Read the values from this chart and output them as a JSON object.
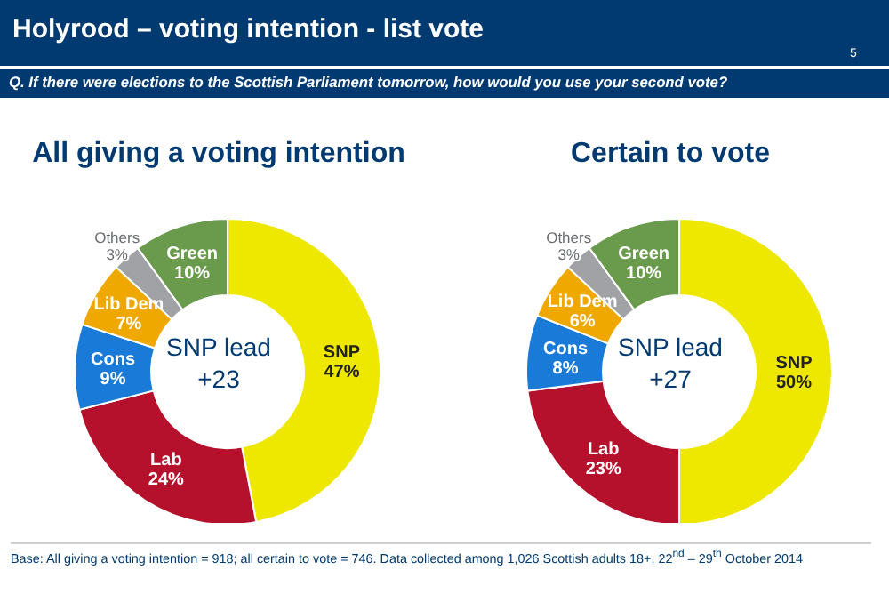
{
  "chart_data": [
    {
      "type": "other",
      "title": "Holyrood – voting intention - list vote",
      "subtitle": "Q. If there were elections to the Scottish Parliament tomorrow, how would you use your second vote?",
      "annotations": [
        "5",
        "Base: All giving a voting intention = 918; all certain to vote = 746. Data collected among 1,026 Scottish adults 18+, 22$^{nd}$ – 29$^{th}$ October 2014"
      ]
    },
    {
      "type": "donut",
      "title": "All giving a voting intention",
      "categories": [
        "SNP",
        "Lab",
        "Cons",
        "Lib Dem",
        "Others",
        "Green"
      ],
      "values": [
        47,
        24,
        9,
        7,
        3,
        10
      ],
      "colors": [
        "#eee800",
        "#b5102c",
        "#1a7ad8",
        "#eea800",
        "#a0a2a6",
        "#6a9a4c"
      ],
      "value_labels": [
        "47%",
        "24%",
        "9%",
        "7%",
        "3%",
        "10%"
      ],
      "annotations": [
        "SNP lead",
        "+23"
      ]
    },
    {
      "type": "donut",
      "title": "Certain to vote",
      "categories": [
        "SNP",
        "Lab",
        "Cons",
        "Lib Dem",
        "Others",
        "Green"
      ],
      "values": [
        50,
        23,
        8,
        6,
        3,
        10
      ],
      "colors": [
        "#eee800",
        "#b5102c",
        "#1a7ad8",
        "#eea800",
        "#a0a2a6",
        "#6a9a4c"
      ],
      "value_labels": [
        "50%",
        "23%",
        "8%",
        "6%",
        "3%",
        "10%"
      ],
      "annotations": [
        "SNP lead",
        "+27"
      ]
    }
  ]
}
